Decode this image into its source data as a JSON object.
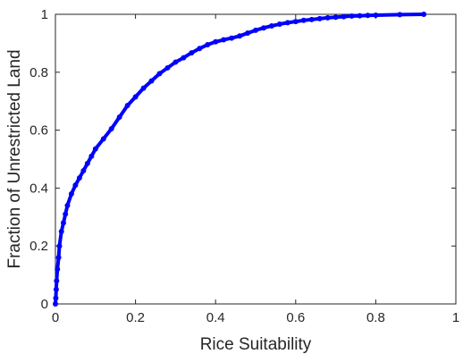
{
  "chart_data": {
    "type": "line",
    "title": "",
    "xlabel": "Rice Suitability",
    "ylabel": "Fraction of Unrestricted Land",
    "xlim": [
      0,
      1
    ],
    "ylim": [
      0,
      1
    ],
    "xticks": [
      0,
      0.2,
      0.4,
      0.6,
      0.8,
      1
    ],
    "yticks": [
      0,
      0.2,
      0.4,
      0.6,
      0.8,
      1
    ],
    "xtick_labels": [
      "0",
      "0.2",
      "0.4",
      "0.6",
      "0.8",
      "1"
    ],
    "ytick_labels": [
      "0",
      "0.2",
      "0.4",
      "0.6",
      "0.8",
      "1"
    ],
    "grid": false,
    "legend": "none",
    "series": [
      {
        "color": "#0000ff",
        "marker": "circle",
        "x": [
          0,
          0.001,
          0.002,
          0.003,
          0.005,
          0.008,
          0.01,
          0.015,
          0.02,
          0.025,
          0.03,
          0.04,
          0.05,
          0.06,
          0.07,
          0.08,
          0.09,
          0.1,
          0.12,
          0.14,
          0.16,
          0.18,
          0.2,
          0.22,
          0.24,
          0.26,
          0.28,
          0.3,
          0.32,
          0.34,
          0.36,
          0.38,
          0.4,
          0.42,
          0.44,
          0.46,
          0.48,
          0.5,
          0.52,
          0.54,
          0.56,
          0.58,
          0.6,
          0.62,
          0.64,
          0.66,
          0.68,
          0.7,
          0.72,
          0.74,
          0.76,
          0.78,
          0.8,
          0.86,
          0.92
        ],
        "y": [
          0,
          0.02,
          0.05,
          0.08,
          0.12,
          0.16,
          0.2,
          0.25,
          0.28,
          0.31,
          0.34,
          0.38,
          0.41,
          0.435,
          0.46,
          0.485,
          0.51,
          0.535,
          0.57,
          0.605,
          0.645,
          0.685,
          0.715,
          0.745,
          0.77,
          0.795,
          0.815,
          0.835,
          0.85,
          0.867,
          0.882,
          0.895,
          0.905,
          0.912,
          0.918,
          0.925,
          0.935,
          0.945,
          0.953,
          0.96,
          0.966,
          0.971,
          0.975,
          0.979,
          0.982,
          0.985,
          0.988,
          0.99,
          0.992,
          0.994,
          0.995,
          0.996,
          0.997,
          0.999,
          1.0
        ]
      }
    ]
  }
}
